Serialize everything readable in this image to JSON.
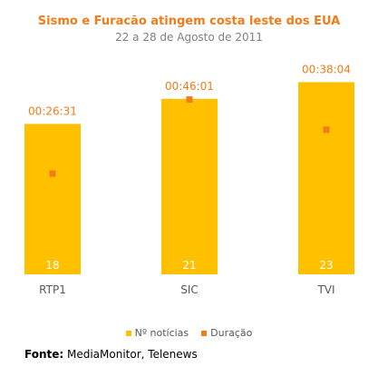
{
  "chart_data": {
    "type": "bar",
    "title": "Sismo e Furacão atingem costa leste dos EUA",
    "subtitle": "22 a 28 de Agosto de 2011",
    "categories": [
      "RTP1",
      "SIC",
      "TVI"
    ],
    "series": [
      {
        "name": "Nº notícias",
        "values": [
          18,
          21,
          23
        ],
        "value_labels": [
          "18",
          "21",
          "23"
        ],
        "color": "#ffc000"
      },
      {
        "name": "Duração",
        "values": [
          26.52,
          46.02,
          38.07
        ],
        "value_labels": [
          "00:26:31",
          "00:46:01",
          "00:38:04"
        ],
        "color": "#f07c1a"
      }
    ],
    "bar_ylim": [
      0,
      25
    ],
    "duration_ylim": [
      0,
      55
    ],
    "legend_position": "bottom",
    "grid": false
  },
  "legend": {
    "notícias": "Nº notícias",
    "duracao": "Duração"
  },
  "source": {
    "label": "Fonte:",
    "text": " MediaMonitor, Telenews"
  }
}
